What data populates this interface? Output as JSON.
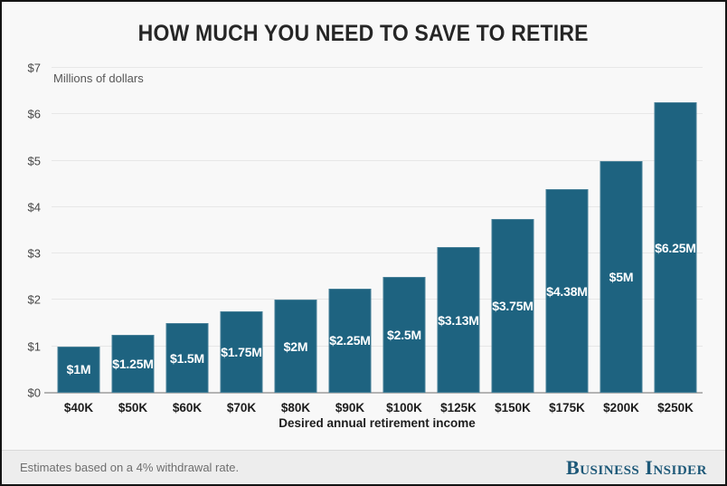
{
  "title": "HOW MUCH YOU NEED TO SAVE TO RETIRE",
  "chart_data": {
    "type": "bar",
    "title": "HOW MUCH YOU NEED TO SAVE TO RETIRE",
    "unit_label": "Millions of dollars",
    "xlabel": "Desired annual retirement income",
    "ylabel": "Millions of dollars",
    "ylim": [
      0,
      7
    ],
    "yticks": [
      {
        "label": "$0",
        "value": 0
      },
      {
        "label": "$1",
        "value": 1
      },
      {
        "label": "$2",
        "value": 2
      },
      {
        "label": "$3",
        "value": 3
      },
      {
        "label": "$4",
        "value": 4
      },
      {
        "label": "$5",
        "value": 5
      },
      {
        "label": "$6",
        "value": 6
      },
      {
        "label": "$7",
        "value": 7
      }
    ],
    "categories": [
      "$40K",
      "$50K",
      "$60K",
      "$70K",
      "$80K",
      "$90K",
      "$100K",
      "$125K",
      "$150K",
      "$175K",
      "$200K",
      "$250K"
    ],
    "values": [
      1,
      1.25,
      1.5,
      1.75,
      2,
      2.25,
      2.5,
      3.13,
      3.75,
      4.38,
      5,
      6.25
    ],
    "bar_labels": [
      "$1M",
      "$1.25M",
      "$1.5M",
      "$1.75M",
      "$2M",
      "$2.25M",
      "$2.5M",
      "$3.13M",
      "$3.75M",
      "$4.38M",
      "$5M",
      "$6.25M"
    ],
    "grid": true,
    "legend": "none",
    "colors": {
      "bar": "#1e6380",
      "bar_label": "#ffffff",
      "gridline": "#e7e7e7",
      "baseline": "#b4b4b4",
      "background": "#f8f8f8"
    }
  },
  "footer": {
    "note": "Estimates based on a 4% withdrawal rate.",
    "brand": "Business Insider"
  }
}
